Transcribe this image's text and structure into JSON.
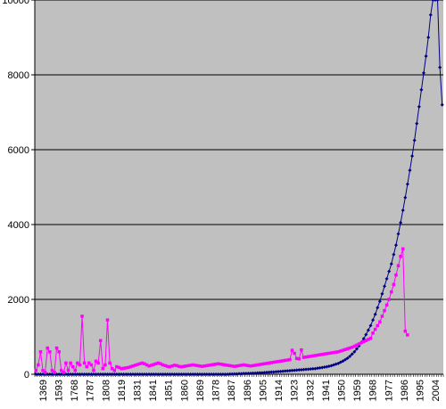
{
  "chart_data": {
    "type": "line",
    "title": "",
    "xlabel": "",
    "ylabel": "",
    "ylim": [
      0,
      10000
    ],
    "yticks": [
      0,
      2000,
      4000,
      6000,
      8000,
      10000
    ],
    "ytick_labels": [
      "0",
      "2000",
      "4000",
      "6000",
      "8000",
      "10000"
    ],
    "xtick_labels": [
      "1369",
      "1593",
      "1768",
      "1787",
      "1808",
      "1819",
      "1831",
      "1841",
      "1851",
      "1860",
      "1869",
      "1878",
      "1887",
      "1896",
      "1905",
      "1914",
      "1923",
      "1932",
      "1941",
      "1950",
      "1959",
      "1968",
      "1977",
      "1986",
      "1995",
      "2004"
    ],
    "grid": "horizontal",
    "legend": "none",
    "plot_background": "#c0c0c0",
    "series": [
      {
        "color": "#000080",
        "marker": "diamond",
        "values": [
          0,
          0,
          0,
          0,
          0,
          0,
          0,
          0,
          0,
          0,
          0,
          0,
          0,
          0,
          0,
          0,
          0,
          0,
          0,
          0,
          0,
          0,
          0,
          0,
          0,
          0,
          0,
          0,
          0,
          0,
          0,
          0,
          0,
          0,
          0,
          0,
          0,
          0,
          0,
          0,
          0,
          0,
          0,
          0,
          0,
          0,
          0,
          0,
          0,
          0,
          0,
          0,
          0,
          0,
          0,
          0,
          0,
          0,
          0,
          0,
          0,
          0,
          0,
          0,
          0,
          0,
          0,
          0,
          0,
          0,
          0,
          0,
          0,
          0,
          0,
          0,
          0,
          0,
          0,
          0,
          0,
          0,
          0,
          0,
          5,
          5,
          10,
          10,
          15,
          15,
          20,
          20,
          25,
          25,
          30,
          30,
          35,
          40,
          40,
          45,
          50,
          55,
          60,
          60,
          65,
          70,
          75,
          80,
          85,
          90,
          95,
          100,
          105,
          110,
          115,
          120,
          125,
          130,
          135,
          140,
          145,
          150,
          160,
          170,
          180,
          190,
          200,
          215,
          230,
          250,
          270,
          290,
          320,
          350,
          390,
          430,
          480,
          540,
          600,
          680,
          760,
          850,
          950,
          1060,
          1180,
          1300,
          1450,
          1600,
          1780,
          1950,
          2150,
          2350,
          2550,
          2750,
          2950,
          3200,
          3450,
          3750,
          4050,
          4380,
          4720,
          5080,
          5450,
          5830,
          6250,
          6700,
          7150,
          7600,
          8050,
          8500,
          9000,
          9600,
          10200,
          10500,
          10200,
          8200,
          7200
        ]
      },
      {
        "color": "#ff00ff",
        "marker": "square",
        "values": [
          100,
          250,
          600,
          100,
          50,
          700,
          600,
          100,
          50,
          700,
          600,
          100,
          50,
          300,
          100,
          300,
          200,
          100,
          300,
          250,
          1550,
          300,
          200,
          300,
          250,
          100,
          350,
          300,
          900,
          150,
          250,
          1450,
          300,
          150,
          100,
          200,
          180,
          150,
          160,
          170,
          180,
          200,
          220,
          240,
          260,
          280,
          300,
          280,
          250,
          220,
          240,
          260,
          280,
          300,
          280,
          250,
          230,
          210,
          200,
          220,
          240,
          230,
          210,
          200,
          210,
          220,
          230,
          240,
          250,
          240,
          230,
          220,
          210,
          220,
          230,
          240,
          250,
          260,
          270,
          280,
          270,
          260,
          250,
          240,
          230,
          220,
          210,
          220,
          230,
          240,
          250,
          240,
          230,
          220,
          230,
          240,
          250,
          260,
          270,
          280,
          290,
          300,
          310,
          320,
          330,
          340,
          350,
          360,
          370,
          380,
          390,
          640,
          560,
          420,
          410,
          650,
          450,
          460,
          470,
          480,
          490,
          500,
          510,
          520,
          530,
          540,
          550,
          560,
          570,
          580,
          590,
          600,
          620,
          640,
          660,
          680,
          700,
          720,
          750,
          780,
          810,
          840,
          870,
          900,
          930,
          960,
          1100,
          1200,
          1300,
          1400,
          1550,
          1700,
          1850,
          2000,
          2200,
          2400,
          2650,
          2900,
          3150,
          3350,
          1150,
          1050
        ]
      }
    ]
  }
}
